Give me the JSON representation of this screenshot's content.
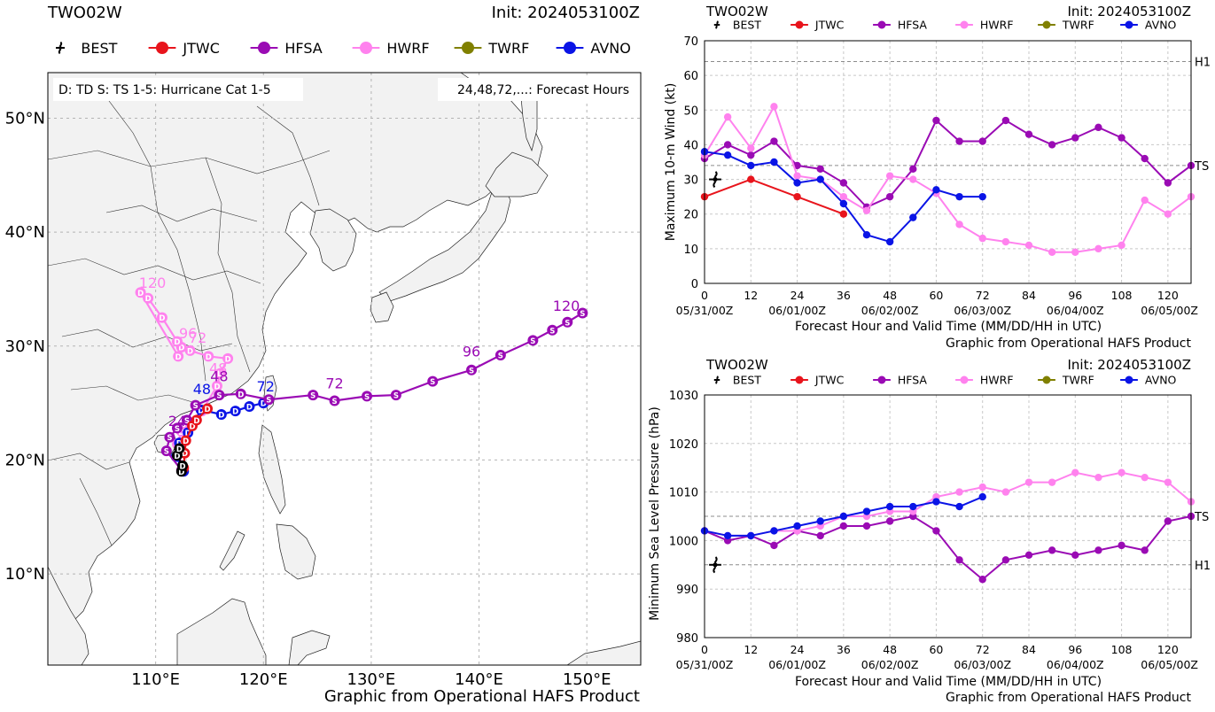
{
  "colors": {
    "BEST": "#000000",
    "JTWC": "#e8141c",
    "HFSA": "#9a0bb4",
    "HWRF": "#ff82ee",
    "TWRF": "#808000",
    "AVNO": "#0a14e6",
    "land": "#f2f2f2",
    "sea": "#ffffff",
    "grid": "#b4b4b4"
  },
  "legend": [
    "BEST",
    "JTWC",
    "HFSA",
    "HWRF",
    "TWRF",
    "AVNO"
  ],
  "map": {
    "storm": "TWO02W",
    "init": "Init: 2024053100Z",
    "note_left": "D: TD  S: TS  1-5: Hurricane Cat 1-5",
    "note_right": "24,48,72,...: Forecast Hours",
    "credit": "Graphic from Operational HAFS Product",
    "lat_ticks": [
      "50°N",
      "40°N",
      "30°N",
      "20°N",
      "10°N"
    ],
    "lon_ticks": [
      "110°E",
      "120°E",
      "130°E",
      "140°E",
      "150°E"
    ]
  },
  "charts_text": {
    "wind": {
      "storm": "TWO02W",
      "init": "Init: 2024053100Z",
      "ylabel": "Maximum 10-m Wind (kt)",
      "xlabel": "Forecast Hour and Valid Time (MM/DD/HH in UTC)",
      "credit": "Graphic from Operational HAFS Product"
    },
    "pres": {
      "storm": "TWO02W",
      "init": "Init: 2024053100Z",
      "ylabel": "Minimum Sea Level Pressure (hPa)",
      "xlabel": "Forecast Hour and Valid Time (MM/DD/HH in UTC)",
      "credit": "Graphic from Operational HAFS Product"
    }
  },
  "chart_data": [
    {
      "type": "line",
      "title": "TWO02W",
      "ylabel": "Maximum 10-m Wind (kt)",
      "xlim": [
        0,
        126
      ],
      "ylim": [
        0,
        70
      ],
      "yticks": [
        0,
        10,
        20,
        30,
        40,
        50,
        60,
        70
      ],
      "xticks": [
        0,
        12,
        24,
        36,
        48,
        60,
        72,
        84,
        96,
        108,
        120
      ],
      "date_ticks": [
        {
          "x": 0,
          "label": "05/31/00Z"
        },
        {
          "x": 24,
          "label": "06/01/00Z"
        },
        {
          "x": 48,
          "label": "06/02/00Z"
        },
        {
          "x": 72,
          "label": "06/03/00Z"
        },
        {
          "x": 96,
          "label": "06/04/00Z"
        },
        {
          "x": 120,
          "label": "06/05/00Z"
        }
      ],
      "reference_lines": [
        {
          "label": "H1",
          "value": 64
        },
        {
          "label": "TS",
          "value": 34
        }
      ],
      "best_marker": {
        "x": 0,
        "y": 30
      },
      "series": [
        {
          "name": "JTWC",
          "x": [
            0,
            12,
            24,
            36
          ],
          "values": [
            25,
            30,
            25,
            20
          ]
        },
        {
          "name": "HFSA",
          "x": [
            0,
            6,
            12,
            18,
            24,
            30,
            36,
            42,
            48,
            54,
            60,
            66,
            72,
            78,
            84,
            90,
            96,
            102,
            108,
            114,
            120,
            126
          ],
          "values": [
            36,
            40,
            37,
            41,
            34,
            33,
            29,
            22,
            25,
            33,
            47,
            41,
            41,
            47,
            43,
            40,
            42,
            45,
            42,
            36,
            29,
            34
          ]
        },
        {
          "name": "HWRF",
          "x": [
            0,
            6,
            12,
            18,
            24,
            30,
            36,
            42,
            48,
            54,
            60,
            66,
            72,
            78,
            84,
            90,
            96,
            102,
            108,
            114,
            120,
            126
          ],
          "values": [
            37,
            48,
            39,
            51,
            31,
            30,
            25,
            21,
            31,
            30,
            26,
            17,
            13,
            12,
            11,
            9,
            9,
            10,
            11,
            24,
            20,
            25
          ]
        },
        {
          "name": "AVNO",
          "x": [
            0,
            6,
            12,
            18,
            24,
            30,
            36,
            42,
            48,
            54,
            60,
            66,
            72
          ],
          "values": [
            38,
            37,
            34,
            35,
            29,
            30,
            23,
            14,
            12,
            19,
            27,
            25,
            25
          ]
        }
      ]
    },
    {
      "type": "line",
      "title": "TWO02W",
      "ylabel": "Minimum Sea Level Pressure (hPa)",
      "xlim": [
        0,
        126
      ],
      "ylim": [
        980,
        1030
      ],
      "yticks": [
        980,
        990,
        1000,
        1010,
        1020,
        1030
      ],
      "xticks": [
        0,
        12,
        24,
        36,
        48,
        60,
        72,
        84,
        96,
        108,
        120
      ],
      "date_ticks": [
        {
          "x": 0,
          "label": "05/31/00Z"
        },
        {
          "x": 24,
          "label": "06/01/00Z"
        },
        {
          "x": 48,
          "label": "06/02/00Z"
        },
        {
          "x": 72,
          "label": "06/03/00Z"
        },
        {
          "x": 96,
          "label": "06/04/00Z"
        },
        {
          "x": 120,
          "label": "06/05/00Z"
        }
      ],
      "reference_lines": [
        {
          "label": "TS",
          "value": 1005
        },
        {
          "label": "H1",
          "value": 995
        }
      ],
      "best_marker": {
        "x": 0,
        "y": 995
      },
      "series": [
        {
          "name": "HFSA",
          "x": [
            0,
            6,
            12,
            18,
            24,
            30,
            36,
            42,
            48,
            54,
            60,
            66,
            72,
            78,
            84,
            90,
            96,
            102,
            108,
            114,
            120,
            126
          ],
          "values": [
            1002,
            1000,
            1001,
            999,
            1002,
            1001,
            1003,
            1003,
            1004,
            1005,
            1002,
            996,
            992,
            996,
            997,
            998,
            997,
            998,
            999,
            998,
            1004,
            1005
          ]
        },
        {
          "name": "HWRF",
          "x": [
            0,
            6,
            12,
            18,
            24,
            30,
            36,
            42,
            48,
            54,
            60,
            66,
            72,
            78,
            84,
            90,
            96,
            102,
            108,
            114,
            120,
            126
          ],
          "values": [
            1002,
            1001,
            1001,
            1002,
            1002,
            1003,
            1005,
            1005,
            1006,
            1006,
            1009,
            1010,
            1011,
            1010,
            1012,
            1012,
            1014,
            1013,
            1014,
            1013,
            1012,
            1008
          ]
        },
        {
          "name": "AVNO",
          "x": [
            0,
            6,
            12,
            18,
            24,
            30,
            36,
            42,
            48,
            54,
            60,
            66,
            72
          ],
          "values": [
            1002,
            1001,
            1001,
            1002,
            1003,
            1004,
            1005,
            1006,
            1007,
            1007,
            1008,
            1007,
            1009
          ]
        }
      ]
    },
    {
      "type": "scatter",
      "title": "TWO02W",
      "xlabel": "Longitude (°E)",
      "ylabel": "Latitude (°N)",
      "xlim": [
        100,
        155
      ],
      "ylim": [
        2,
        54
      ],
      "labelled_hours": [
        24,
        48,
        72,
        96,
        120
      ],
      "series": [
        {
          "name": "BEST",
          "points": [
            [
              112.4,
              19.0,
              "D"
            ],
            [
              112.5,
              19.5,
              "D"
            ],
            [
              112.0,
              20.4,
              "D"
            ],
            [
              112.2,
              21.0,
              "D"
            ]
          ]
        },
        {
          "name": "JTWC",
          "points": [
            [
              112.6,
              19.3,
              "D"
            ],
            [
              112.7,
              20.6,
              "D"
            ],
            [
              112.8,
              21.7,
              "D"
            ],
            [
              113.4,
              23.0,
              "D"
            ],
            [
              113.8,
              23.5,
              "D"
            ],
            [
              114.8,
              24.5,
              "D"
            ]
          ]
        },
        {
          "name": "HFSA",
          "points": [
            [
              112.4,
              19.1,
              "D"
            ],
            [
              111.0,
              20.8,
              "S"
            ],
            [
              111.3,
              22.0,
              "S"
            ],
            [
              112.0,
              22.8,
              "S"
            ],
            [
              112.9,
              23.5,
              "S"
            ],
            [
              113.7,
              24.8,
              "S"
            ],
            [
              115.9,
              25.7,
              "S"
            ],
            [
              117.9,
              25.8,
              "D"
            ],
            [
              120.5,
              25.3,
              "S"
            ],
            [
              124.6,
              25.7,
              "S"
            ],
            [
              126.6,
              25.2,
              "S"
            ],
            [
              129.6,
              25.6,
              "S"
            ],
            [
              132.3,
              25.7,
              "S"
            ],
            [
              135.7,
              26.9,
              "S"
            ],
            [
              139.3,
              27.9,
              "S"
            ],
            [
              142.0,
              29.2,
              "S"
            ],
            [
              145.0,
              30.5,
              "S"
            ],
            [
              146.8,
              31.4,
              "S"
            ],
            [
              148.2,
              32.1,
              "S"
            ],
            [
              149.6,
              32.9,
              "S"
            ]
          ],
          "hour_labels": [
            [
              112.0,
              23.0,
              "24"
            ],
            [
              115.9,
              26.9,
              "48"
            ],
            [
              126.6,
              26.3,
              "72"
            ],
            [
              139.3,
              29.1,
              "96"
            ],
            [
              148.1,
              33.1,
              "120"
            ]
          ]
        },
        {
          "name": "HWRF",
          "points": [
            [
              112.5,
              19.2,
              "D"
            ],
            [
              112.0,
              21.4,
              "D"
            ],
            [
              112.4,
              22.5,
              "D"
            ],
            [
              113.2,
              23.3,
              "D"
            ],
            [
              114.3,
              24.3,
              "D"
            ],
            [
              115.7,
              26.5,
              "D"
            ],
            [
              116.0,
              27.6,
              "D"
            ],
            [
              116.7,
              28.9,
              "D"
            ],
            [
              114.9,
              29.1,
              "D"
            ],
            [
              113.2,
              29.6,
              "D"
            ],
            [
              112.4,
              29.9,
              "D"
            ],
            [
              112.0,
              30.4,
              "D"
            ],
            [
              110.6,
              32.5,
              "D"
            ],
            [
              109.3,
              34.2,
              "D"
            ],
            [
              108.6,
              34.7,
              "D"
            ],
            [
              112.1,
              29.1,
              "D"
            ]
          ],
          "hour_labels": [
            [
              115.8,
              27.6,
              "48"
            ],
            [
              113.9,
              30.3,
              "72"
            ],
            [
              113.0,
              30.7,
              "96"
            ],
            [
              109.7,
              35.1,
              "120"
            ]
          ]
        },
        {
          "name": "AVNO",
          "points": [
            [
              112.6,
              19.0,
              "D"
            ],
            [
              111.9,
              20.3,
              "D"
            ],
            [
              112.2,
              21.5,
              "D"
            ],
            [
              113.0,
              22.4,
              "D"
            ],
            [
              114.2,
              24.4,
              "D"
            ],
            [
              116.1,
              24.0,
              "D"
            ],
            [
              117.4,
              24.3,
              "D"
            ],
            [
              118.7,
              24.7,
              "D"
            ],
            [
              120.0,
              25.0,
              "D"
            ]
          ],
          "hour_labels": [
            [
              114.3,
              25.8,
              "48"
            ],
            [
              120.2,
              26.0,
              "72"
            ]
          ]
        }
      ]
    }
  ]
}
